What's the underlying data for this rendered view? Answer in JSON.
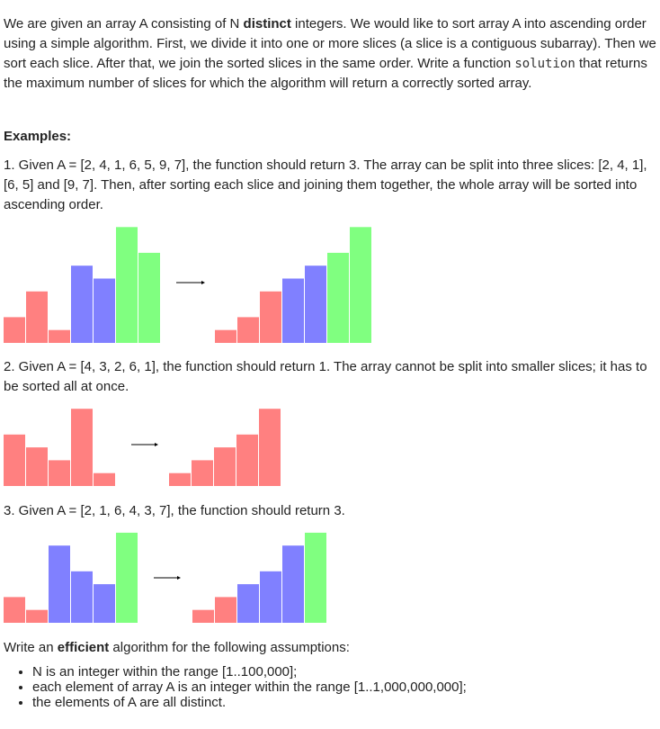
{
  "intro": {
    "p1": "We are given an array A consisting of N ",
    "p1_bold": "distinct",
    "p2": " integers. We would like to sort array A into ascending order using a simple algorithm. First, we divide it into one or more slices (a slice is a contiguous subarray). Then we sort each slice. After that, we join the sorted slices in the same order. Write a function ",
    "code": "solution",
    "p3": " that returns the maximum number of slices for which the algorithm will return a correctly sorted array."
  },
  "examples_heading": "Examples:",
  "examples": [
    {
      "text": "1. Given A = [2, 4, 1, 6, 5, 9, 7], the function should return 3. The array can be split into three slices: [2, 4, 1], [6, 5] and [9, 7]. Then, after sorting each slice and joining them together, the whole array will be sorted into ascending order."
    },
    {
      "text": "2. Given A = [4, 3, 2, 6, 1], the function should return 1. The array cannot be split into smaller slices; it has to be sorted all at once."
    },
    {
      "text": "3. Given A = [2, 1, 6, 4, 3, 7], the function should return 3."
    }
  ],
  "figures": [
    {
      "before": [
        2,
        4,
        1,
        6,
        5,
        9,
        7
      ],
      "before_slices": [
        0,
        0,
        0,
        1,
        1,
        2,
        2
      ],
      "after": [
        1,
        2,
        4,
        5,
        6,
        7,
        9
      ],
      "after_slices": [
        0,
        0,
        0,
        1,
        1,
        2,
        2
      ]
    },
    {
      "before": [
        4,
        3,
        2,
        6,
        1
      ],
      "before_slices": [
        0,
        0,
        0,
        0,
        0
      ],
      "after": [
        1,
        2,
        3,
        4,
        6
      ],
      "after_slices": [
        0,
        0,
        0,
        0,
        0
      ]
    },
    {
      "before": [
        2,
        1,
        6,
        4,
        3,
        7
      ],
      "before_slices": [
        0,
        0,
        1,
        1,
        1,
        2
      ],
      "after": [
        1,
        2,
        3,
        4,
        6,
        7
      ],
      "after_slices": [
        0,
        0,
        1,
        1,
        1,
        2
      ]
    }
  ],
  "slice_colors": [
    "#ff8080",
    "#8080ff",
    "#80ff80"
  ],
  "arrow_color": "#000000",
  "assumptions": {
    "lead": "Write an ",
    "lead_bold": "efficient",
    "lead_rest": " algorithm for the following assumptions:",
    "items": [
      "N is an integer within the range [1..100,000];",
      "each element of array A is an integer within the range [1..1,000,000,000];",
      "the elements of A are all distinct."
    ]
  }
}
